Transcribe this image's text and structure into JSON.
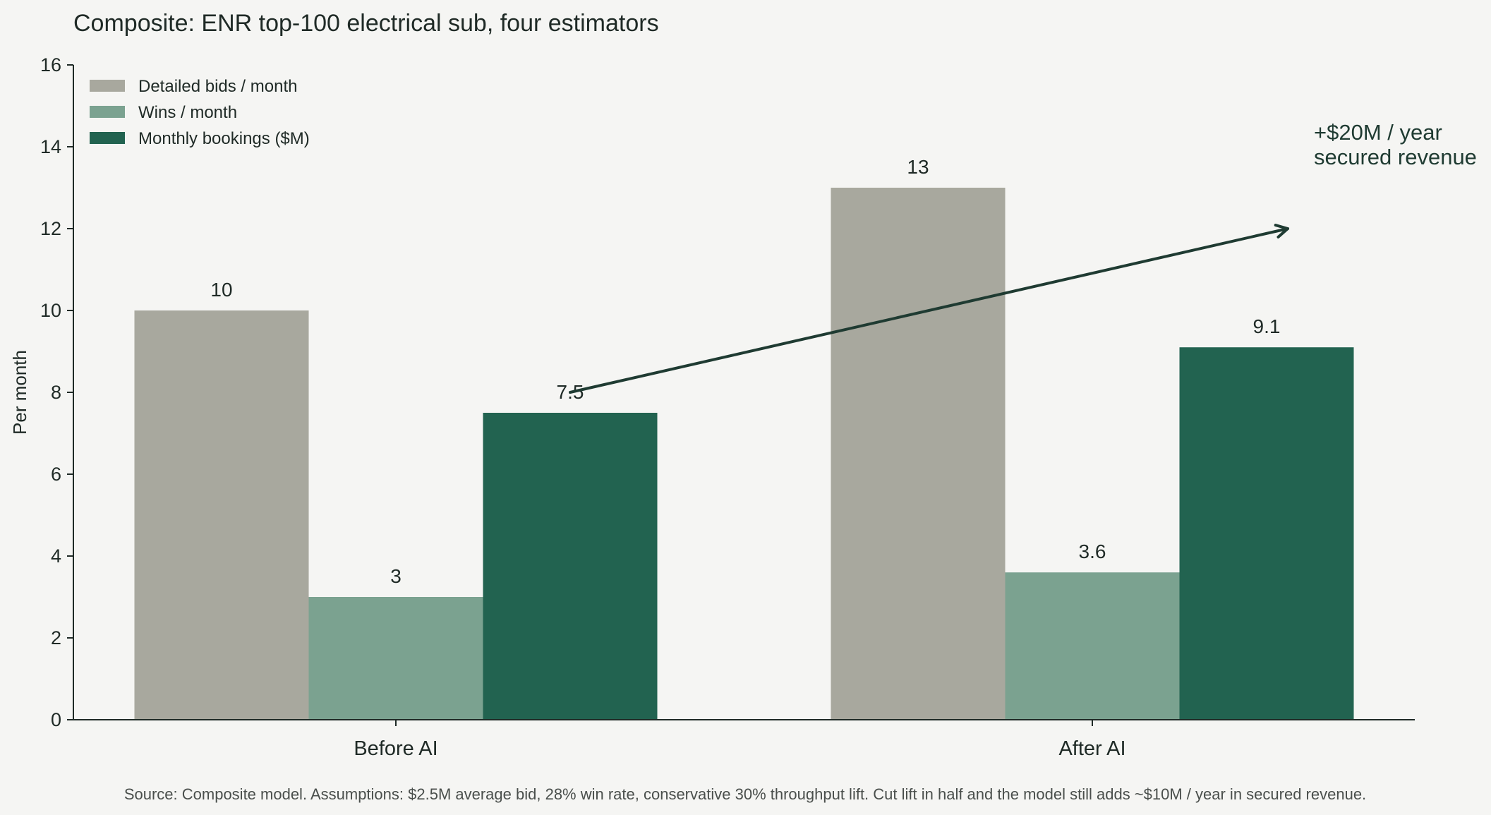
{
  "chart_data": {
    "type": "bar",
    "title": "Composite: ENR top-100 electrical sub, four estimators",
    "ylabel": "Per month",
    "xlabel": "",
    "ylim": [
      0,
      16
    ],
    "yticks": [
      0,
      2,
      4,
      6,
      8,
      10,
      12,
      14,
      16
    ],
    "grid": false,
    "legend_position": "top-left",
    "categories": [
      "Before AI",
      "After AI"
    ],
    "series": [
      {
        "name": "Detailed bids / month",
        "values": [
          10,
          13
        ],
        "labels": [
          "10",
          "13"
        ],
        "color": "#a8a89e"
      },
      {
        "name": "Wins / month",
        "values": [
          3,
          3.6
        ],
        "labels": [
          "3",
          "3.6"
        ],
        "color": "#7ba290"
      },
      {
        "name": "Monthly bookings ($M)",
        "values": [
          7.5,
          9.1
        ],
        "labels": [
          "7.5",
          "9.1"
        ],
        "color": "#226350"
      }
    ],
    "annotation": {
      "lines": [
        "+$20M / year",
        "secured revenue"
      ],
      "arrow_from": {
        "category": 0,
        "y": 8.0
      },
      "arrow_to": {
        "category": 1,
        "y": 12.0
      },
      "color": "#1f3b32"
    },
    "source": "Source: Composite model. Assumptions: $2.5M average bid, 28% win rate, conservative 30% throughput lift. Cut lift in half and the model still adds ~$10M / year in secured revenue."
  }
}
